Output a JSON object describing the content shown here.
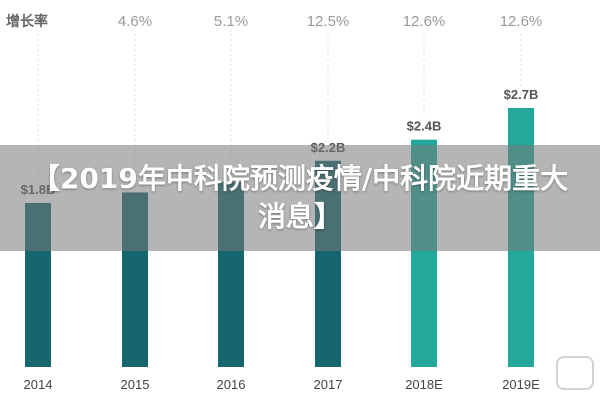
{
  "chart_data": {
    "type": "bar",
    "categories": [
      "2014",
      "2015",
      "2016",
      "2017",
      "2018E",
      "2019E"
    ],
    "values": [
      1.8,
      1.9,
      2.0,
      2.2,
      2.4,
      2.7
    ],
    "value_labels": [
      "$1.8B",
      "",
      "",
      "$2.2B",
      "$2.4B",
      "$2.7B"
    ],
    "growth_header": "增长率",
    "growth_rates": [
      "",
      "4.6%",
      "5.1%",
      "12.5%",
      "12.6%",
      "12.6%"
    ],
    "ylim": [
      0,
      2.7
    ],
    "grid": false,
    "colors": {
      "actual": "#16666f",
      "estimate": "#23a99b",
      "guide": "#dddddd"
    }
  },
  "headline": "【2019年中科院预测疫情/中科院近期重大消息】"
}
